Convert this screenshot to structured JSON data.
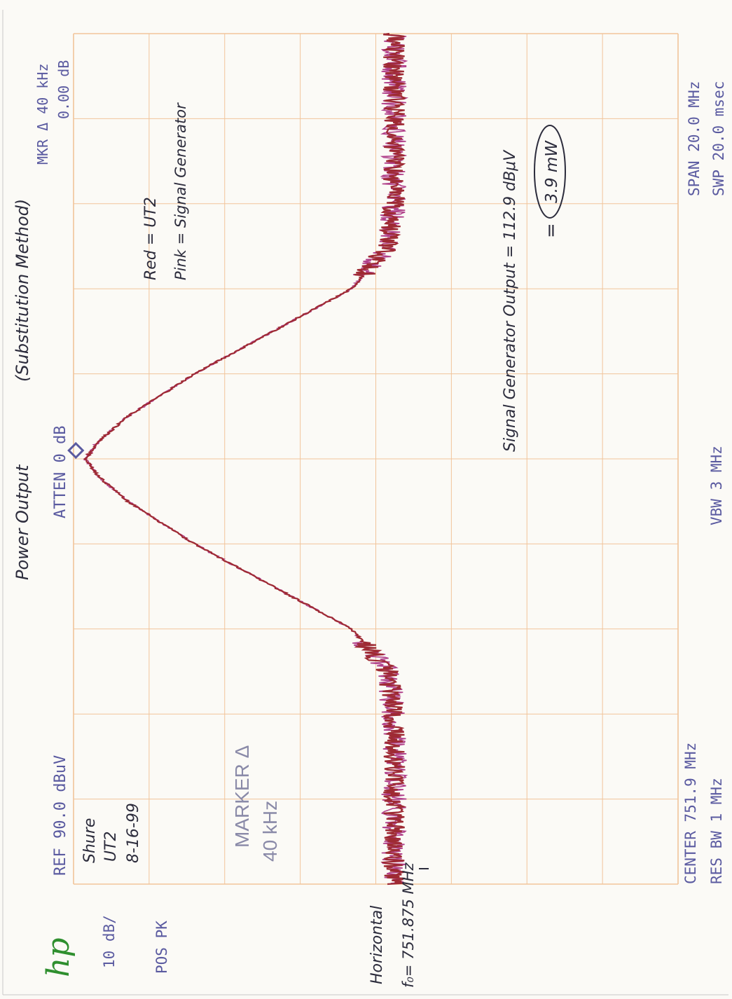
{
  "header": {
    "brand": "hp",
    "ref": "REF  90.0 dBuV",
    "atten": "ATTEN 0 dB",
    "scale": "10 dB/",
    "detector": "POS PK",
    "marker_delta_freq": "MKR Δ  40 kHz",
    "marker_delta_level": "0.00 dB"
  },
  "footer": {
    "center": "CENTER 751.9 MHz",
    "res_bw": "RES BW 1 MHz",
    "vbw": "VBW 3 MHz",
    "span": "SPAN 20.0 MHz",
    "sweep": "SWP 20.0 msec"
  },
  "marker_annotation": {
    "line1": "MARKER Δ",
    "line2": "40 kHz"
  },
  "handwritten": {
    "title": "Power Output",
    "method": "(Substitution Method)",
    "sample_line1": "Shure",
    "sample_line2": "UT2",
    "sample_line3": "8-16-99",
    "legend_red": "Red = UT2",
    "legend_pink": "Pink = Signal Generator",
    "siggen_output": "Signal Generator Output = 112.9 dBμV",
    "siggen_power": "3.9 mW",
    "equals": "=",
    "horizontal_label": "Horizontal",
    "f0_label": "f₀= 751.875 MHz"
  },
  "colors": {
    "grid": "#f1c49a",
    "frame": "#e4b892",
    "screen_text": "#5a5aa0",
    "trace_ut2": "#9e2a33",
    "trace_siggen": "#b0408a",
    "hp_logo": "#2f8f2f",
    "ink": "#2c2c3c"
  },
  "chart_data": {
    "type": "line",
    "x_unit": "MHz",
    "y_unit": "dBuV",
    "xlim": [
      741.9,
      761.9
    ],
    "ylim": [
      -10,
      90
    ],
    "grid": true,
    "marker": {
      "x": 751.9,
      "y": 88
    },
    "series": [
      {
        "name": "Red = UT2",
        "x": [
          741.9,
          742.9,
          743.9,
          744.9,
          745.9,
          746.9,
          747.9,
          748.9,
          749.9,
          750.9,
          751.5,
          751.9,
          752.3,
          752.9,
          753.9,
          754.9,
          755.9,
          756.9,
          757.9,
          758.9,
          759.9,
          760.9,
          761.9
        ],
        "y": [
          37,
          37,
          37,
          37,
          37,
          38,
          44,
          57,
          70,
          81,
          86,
          88,
          86,
          81,
          70,
          57,
          44,
          38,
          37,
          37,
          37,
          37,
          37
        ]
      }
    ]
  }
}
